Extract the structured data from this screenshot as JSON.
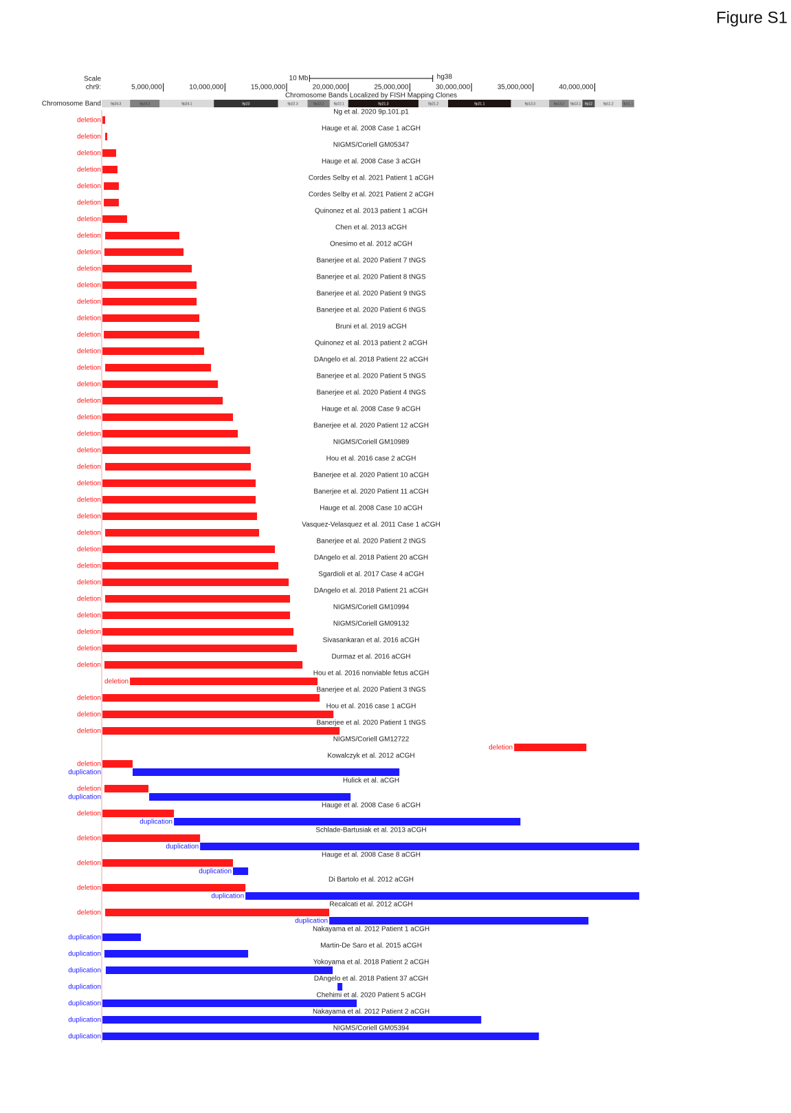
{
  "figure_label": "Figure S1",
  "chart_data": {
    "type": "genome-tracks",
    "scale_label": "Scale",
    "chrom_label": "chr9:",
    "scale_bar": {
      "label": "10 Mb",
      "length": 10000000,
      "assembly": "hg38"
    },
    "band_track_title": "Chromosome Bands Localized by FISH Mapping Clones",
    "band_track_label": "Chromosome Band",
    "xlim": [
      0,
      43600000
    ],
    "xticks": [
      {
        "value": 5000000,
        "label": "5,000,000"
      },
      {
        "value": 10000000,
        "label": "10,000,000"
      },
      {
        "value": 15000000,
        "label": "15,000,000"
      },
      {
        "value": 20000000,
        "label": "20,000,000"
      },
      {
        "value": 25000000,
        "label": "25,000,000"
      },
      {
        "value": 30000000,
        "label": "30,000,000"
      },
      {
        "value": 35000000,
        "label": "35,000,000"
      },
      {
        "value": 40000000,
        "label": "40,000,000"
      }
    ],
    "bands": [
      {
        "name": "9p24.3",
        "start": 0,
        "end": 2300000,
        "color": "#d9d9d9"
      },
      {
        "name": "9p24.2",
        "start": 2300000,
        "end": 4700000,
        "color": "#808080"
      },
      {
        "name": "9p24.1",
        "start": 4700000,
        "end": 9100000,
        "color": "#d9d9d9"
      },
      {
        "name": "9p23",
        "start": 9100000,
        "end": 14300000,
        "color": "#333333"
      },
      {
        "name": "9p22.3",
        "start": 14300000,
        "end": 16700000,
        "color": "#e0e0e0"
      },
      {
        "name": "9p22.2",
        "start": 16700000,
        "end": 18500000,
        "color": "#808080"
      },
      {
        "name": "9p22.1",
        "start": 18500000,
        "end": 20000000,
        "color": "#e0e0e0"
      },
      {
        "name": "9p21.3",
        "start": 20000000,
        "end": 25700000,
        "color": "#1c1512"
      },
      {
        "name": "9p21.2",
        "start": 25700000,
        "end": 28100000,
        "color": "#d9d9d9"
      },
      {
        "name": "9p21.1",
        "start": 28100000,
        "end": 33200000,
        "color": "#1c1512"
      },
      {
        "name": "9p13.3",
        "start": 33200000,
        "end": 36300000,
        "color": "#d9d9d9"
      },
      {
        "name": "9p13.2",
        "start": 36300000,
        "end": 37900000,
        "color": "#888888"
      },
      {
        "name": "9p13.1",
        "start": 37900000,
        "end": 39000000,
        "color": "#d9d9d9"
      },
      {
        "name": "9p12",
        "start": 39000000,
        "end": 40000000,
        "color": "#4d4d4d"
      },
      {
        "name": "9p11.2",
        "start": 40000000,
        "end": 42200000,
        "color": "#e0e0e0"
      },
      {
        "name": "9p11.1",
        "start": 42200000,
        "end": 43200000,
        "color": "#888888"
      }
    ],
    "colors": {
      "deletion": "#ff1a1a",
      "duplication": "#1f1aff"
    },
    "tracks": [
      {
        "name": "Ng et al. 2020 9p.101.p1",
        "features": [
          {
            "type": "deletion",
            "start": 60000,
            "end": 280000
          }
        ]
      },
      {
        "name": "Hauge et al. 2008 Case 1 aCGH",
        "features": [
          {
            "type": "deletion",
            "start": 280000,
            "end": 450000
          }
        ]
      },
      {
        "name": "NIGMS/Coriell GM05347",
        "features": [
          {
            "type": "deletion",
            "start": 60000,
            "end": 1170000
          }
        ]
      },
      {
        "name": "Hauge et al. 2008 Case 3 aCGH",
        "features": [
          {
            "type": "deletion",
            "start": 60000,
            "end": 1280000
          }
        ]
      },
      {
        "name": "Cordes Selby et al. 2021 Patient 1 aCGH",
        "features": [
          {
            "type": "deletion",
            "start": 170000,
            "end": 1390000
          }
        ]
      },
      {
        "name": "Cordes Selby et al. 2021 Patient 2 aCGH",
        "features": [
          {
            "type": "deletion",
            "start": 170000,
            "end": 1390000
          }
        ]
      },
      {
        "name": "Quinonez et al. 2013 patient 1 aCGH",
        "features": [
          {
            "type": "deletion",
            "start": 60000,
            "end": 2060000
          }
        ]
      },
      {
        "name": "Chen et al. 2013 aCGH",
        "features": [
          {
            "type": "deletion",
            "start": 280000,
            "end": 6300000
          }
        ]
      },
      {
        "name": "Onesimo et al. 2012 aCGH",
        "features": [
          {
            "type": "deletion",
            "start": 220000,
            "end": 6640000
          }
        ]
      },
      {
        "name": "Banerjee et al. 2020 Patient 7 tNGS",
        "features": [
          {
            "type": "deletion",
            "start": 60000,
            "end": 7310000
          }
        ]
      },
      {
        "name": "Banerjee et al. 2020 Patient 8 tNGS",
        "features": [
          {
            "type": "deletion",
            "start": 60000,
            "end": 7700000
          }
        ]
      },
      {
        "name": "Banerjee et al. 2020 Patient 9 tNGS",
        "features": [
          {
            "type": "deletion",
            "start": 60000,
            "end": 7700000
          }
        ]
      },
      {
        "name": "Banerjee et al. 2020 Patient 6 tNGS",
        "features": [
          {
            "type": "deletion",
            "start": 60000,
            "end": 7920000
          }
        ]
      },
      {
        "name": "Bruni et al. 2019 aCGH",
        "features": [
          {
            "type": "deletion",
            "start": 170000,
            "end": 7920000
          }
        ]
      },
      {
        "name": "Quinonez et al. 2013 patient 2 aCGH",
        "features": [
          {
            "type": "deletion",
            "start": 60000,
            "end": 8310000
          }
        ]
      },
      {
        "name": "DAngelo et al. 2018 Patient 22 aCGH",
        "features": [
          {
            "type": "deletion",
            "start": 280000,
            "end": 8870000
          }
        ]
      },
      {
        "name": "Banerjee et al. 2020 Patient 5 tNGS",
        "features": [
          {
            "type": "deletion",
            "start": 60000,
            "end": 9430000
          }
        ]
      },
      {
        "name": "Banerjee et al. 2020 Patient 4 tNGS",
        "features": [
          {
            "type": "deletion",
            "start": 60000,
            "end": 9820000
          }
        ]
      },
      {
        "name": "Hauge et al. 2008 Case 9 aCGH",
        "features": [
          {
            "type": "deletion",
            "start": 60000,
            "end": 10650000
          }
        ]
      },
      {
        "name": "Banerjee et al. 2020 Patient 12 aCGH",
        "features": [
          {
            "type": "deletion",
            "start": 60000,
            "end": 11040000
          }
        ]
      },
      {
        "name": "NIGMS/Coriell GM10989",
        "features": [
          {
            "type": "deletion",
            "start": 60000,
            "end": 12050000
          }
        ]
      },
      {
        "name": "Hou et al. 2016 case 2 aCGH",
        "features": [
          {
            "type": "deletion",
            "start": 280000,
            "end": 12100000
          }
        ]
      },
      {
        "name": "Banerjee et al. 2020 Patient 10 aCGH",
        "features": [
          {
            "type": "deletion",
            "start": 60000,
            "end": 12490000
          }
        ]
      },
      {
        "name": "Banerjee et al. 2020 Patient 11 aCGH",
        "features": [
          {
            "type": "deletion",
            "start": 60000,
            "end": 12490000
          }
        ]
      },
      {
        "name": "Hauge et al. 2008 Case 10 aCGH",
        "features": [
          {
            "type": "deletion",
            "start": 60000,
            "end": 12600000
          }
        ]
      },
      {
        "name": "Vasquez-Velasquez et al. 2011 Case 1 aCGH",
        "features": [
          {
            "type": "deletion",
            "start": 280000,
            "end": 12770000
          }
        ]
      },
      {
        "name": "Banerjee et al. 2020 Patient 2 tNGS",
        "features": [
          {
            "type": "deletion",
            "start": 60000,
            "end": 14050000
          }
        ]
      },
      {
        "name": "DAngelo et al. 2018 Patient 20 aCGH",
        "features": [
          {
            "type": "deletion",
            "start": 60000,
            "end": 14330000
          }
        ]
      },
      {
        "name": "Sgardioli et al. 2017 Case 4 aCGH",
        "features": [
          {
            "type": "deletion",
            "start": 60000,
            "end": 15170000
          }
        ]
      },
      {
        "name": "DAngelo et al. 2018 Patient 21 aCGH",
        "features": [
          {
            "type": "deletion",
            "start": 280000,
            "end": 15280000
          }
        ]
      },
      {
        "name": "NIGMS/Coriell GM10994",
        "features": [
          {
            "type": "deletion",
            "start": 60000,
            "end": 15280000
          }
        ]
      },
      {
        "name": "NIGMS/Coriell GM09132",
        "features": [
          {
            "type": "deletion",
            "start": 60000,
            "end": 15560000
          }
        ]
      },
      {
        "name": "Sivasankaran et al. 2016 aCGH",
        "features": [
          {
            "type": "deletion",
            "start": 60000,
            "end": 15840000
          }
        ]
      },
      {
        "name": "Durmaz et al. 2016 aCGH",
        "features": [
          {
            "type": "deletion",
            "start": 220000,
            "end": 16290000
          }
        ]
      },
      {
        "name": "Hou et al. 2016 nonviable fetus aCGH",
        "features": [
          {
            "type": "deletion",
            "start": 2290000,
            "end": 17510000
          }
        ]
      },
      {
        "name": "Banerjee et al. 2020 Patient 3 tNGS",
        "features": [
          {
            "type": "deletion",
            "start": 60000,
            "end": 17680000
          }
        ]
      },
      {
        "name": "Hou et al. 2016 case 1 aCGH",
        "features": [
          {
            "type": "deletion",
            "start": 60000,
            "end": 18800000
          }
        ]
      },
      {
        "name": "Banerjee et al. 2020 Patient 1 tNGS",
        "features": [
          {
            "type": "deletion",
            "start": 60000,
            "end": 19300000
          }
        ]
      },
      {
        "name": "NIGMS/Coriell GM12722",
        "features": [
          {
            "type": "deletion",
            "start": 33460000,
            "end": 39320000
          }
        ]
      },
      {
        "name": "Kowalczyk et al. 2012 aCGH",
        "features": [
          {
            "type": "deletion",
            "start": 60000,
            "end": 2510000
          },
          {
            "type": "duplication",
            "start": 2510000,
            "end": 24150000
          }
        ]
      },
      {
        "name": "Hulick et al. aCGH",
        "features": [
          {
            "type": "deletion",
            "start": 220000,
            "end": 3790000
          },
          {
            "type": "duplication",
            "start": 3850000,
            "end": 20190000
          }
        ]
      },
      {
        "name": "Hauge et al. 2008 Case 6 aCGH",
        "features": [
          {
            "type": "deletion",
            "start": 60000,
            "end": 5860000
          },
          {
            "type": "duplication",
            "start": 5860000,
            "end": 33970000
          }
        ]
      },
      {
        "name": "Schlade-Bartusiak et al. 2013 aCGH",
        "features": [
          {
            "type": "deletion",
            "start": 60000,
            "end": 7980000
          },
          {
            "type": "duplication",
            "start": 7980000,
            "end": 43610000
          }
        ]
      },
      {
        "name": "Hauge et al. 2008 Case 8 aCGH",
        "features": [
          {
            "type": "deletion",
            "start": 60000,
            "end": 10650000
          },
          {
            "type": "duplication",
            "start": 10650000,
            "end": 11880000
          }
        ]
      },
      {
        "name": "Di Bartolo et al. 2012 aCGH",
        "features": [
          {
            "type": "deletion",
            "start": 60000,
            "end": 11660000
          },
          {
            "type": "duplication",
            "start": 11660000,
            "end": 43610000
          }
        ]
      },
      {
        "name": "Recalcati et al. 2012 aCGH",
        "features": [
          {
            "type": "deletion",
            "start": 280000,
            "end": 18460000
          },
          {
            "type": "duplication",
            "start": 18460000,
            "end": 39490000
          }
        ]
      },
      {
        "name": "Nakayama et al. 2012 Patient 1 aCGH",
        "features": [
          {
            "type": "duplication",
            "start": 60000,
            "end": 3180000
          }
        ]
      },
      {
        "name": "Martin-De Saro et al. 2015 aCGH",
        "features": [
          {
            "type": "duplication",
            "start": 220000,
            "end": 11880000
          }
        ]
      },
      {
        "name": "Yokoyama et al. 2018 Patient 2 aCGH",
        "features": [
          {
            "type": "duplication",
            "start": 330000,
            "end": 18740000
          }
        ]
      },
      {
        "name": "DAngelo et al. 2018 Patient 37 aCGH",
        "features": [
          {
            "type": "duplication",
            "start": 19130000,
            "end": 19520000
          }
        ]
      },
      {
        "name": "Chehimi et al. 2020 Patient 5 aCGH",
        "features": [
          {
            "type": "duplication",
            "start": 60000,
            "end": 20690000
          }
        ]
      },
      {
        "name": "Nakayama et al. 2012 Patient 2 aCGH",
        "features": [
          {
            "type": "duplication",
            "start": 60000,
            "end": 30790000
          }
        ]
      },
      {
        "name": "NIGMS/Coriell GM05394",
        "features": [
          {
            "type": "duplication",
            "start": 60000,
            "end": 35470000
          }
        ]
      }
    ]
  }
}
